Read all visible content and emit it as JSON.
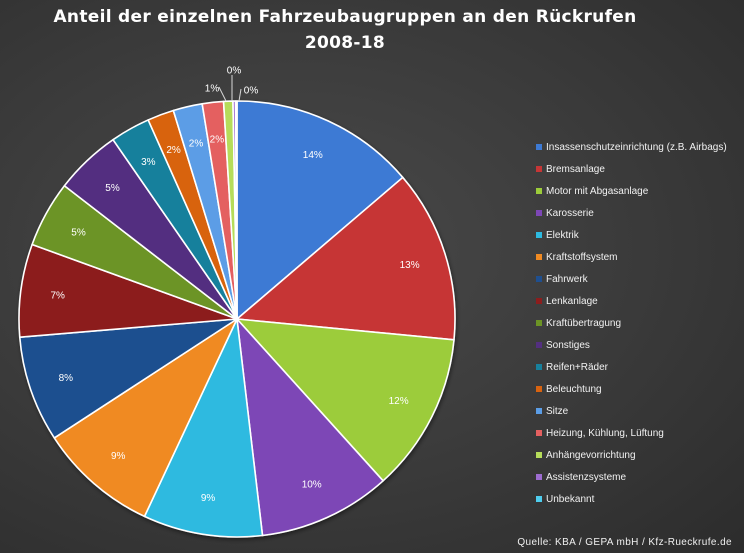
{
  "chart_data": {
    "type": "pie",
    "title_line1": "Anteil der einzelnen Fahrzeubaugruppen an den Rückrufen",
    "title_line2": "2008-18",
    "legend_position": "right",
    "slices": [
      {
        "label": "Insassenschutzeinrichtung (z.B. Airbags)",
        "value": 14,
        "display": "14%",
        "color": "#3d7ad4"
      },
      {
        "label": "Bremsanlage",
        "value": 13,
        "display": "13%",
        "color": "#c63636"
      },
      {
        "label": "Motor mit Abgasanlage",
        "value": 12,
        "display": "12%",
        "color": "#9ccc3a"
      },
      {
        "label": "Karosserie",
        "value": 10,
        "display": "10%",
        "color": "#7d47b6"
      },
      {
        "label": "Elektrik",
        "value": 9,
        "display": "9%",
        "color": "#2dbae0"
      },
      {
        "label": "Kraftstoffsystem",
        "value": 9,
        "display": "9%",
        "color": "#f08a22"
      },
      {
        "label": "Fahrwerk",
        "value": 8,
        "display": "8%",
        "color": "#1f4f8f"
      },
      {
        "label": "Lenkanlage",
        "value": 7,
        "display": "7%",
        "color": "#8c1d1d"
      },
      {
        "label": "Kraftübertragung",
        "value": 5,
        "display": "5%",
        "color": "#6c9425"
      },
      {
        "label": "Sonstiges",
        "value": 5,
        "display": "5%",
        "color": "#532f80"
      },
      {
        "label": "Reifen+Räder",
        "value": 3,
        "display": "3%",
        "color": "#17809c"
      },
      {
        "label": "Beleuchtung",
        "value": 2,
        "display": "2%",
        "color": "#d86310"
      },
      {
        "label": "Sitze",
        "value": 2.2,
        "display": "2%",
        "color": "#5b9de6"
      },
      {
        "label": "Heizung, Kühlung, Lüftung",
        "value": 1.6,
        "display": "2%",
        "color": "#e46060"
      },
      {
        "label": "Anhängevorrichtung",
        "value": 0.7,
        "display": "1%",
        "color": "#b6dc5a"
      },
      {
        "label": "Assistenzsysteme",
        "value": 0.2,
        "display": "0%",
        "color": "#9d6cd0"
      },
      {
        "label": "Unbekannt",
        "value": 0.1,
        "display": "0%",
        "color": "#4fcdee"
      }
    ]
  },
  "source_note": "Quelle: KBA / GEPA mbH / Kfz-Rueckrufe.de"
}
